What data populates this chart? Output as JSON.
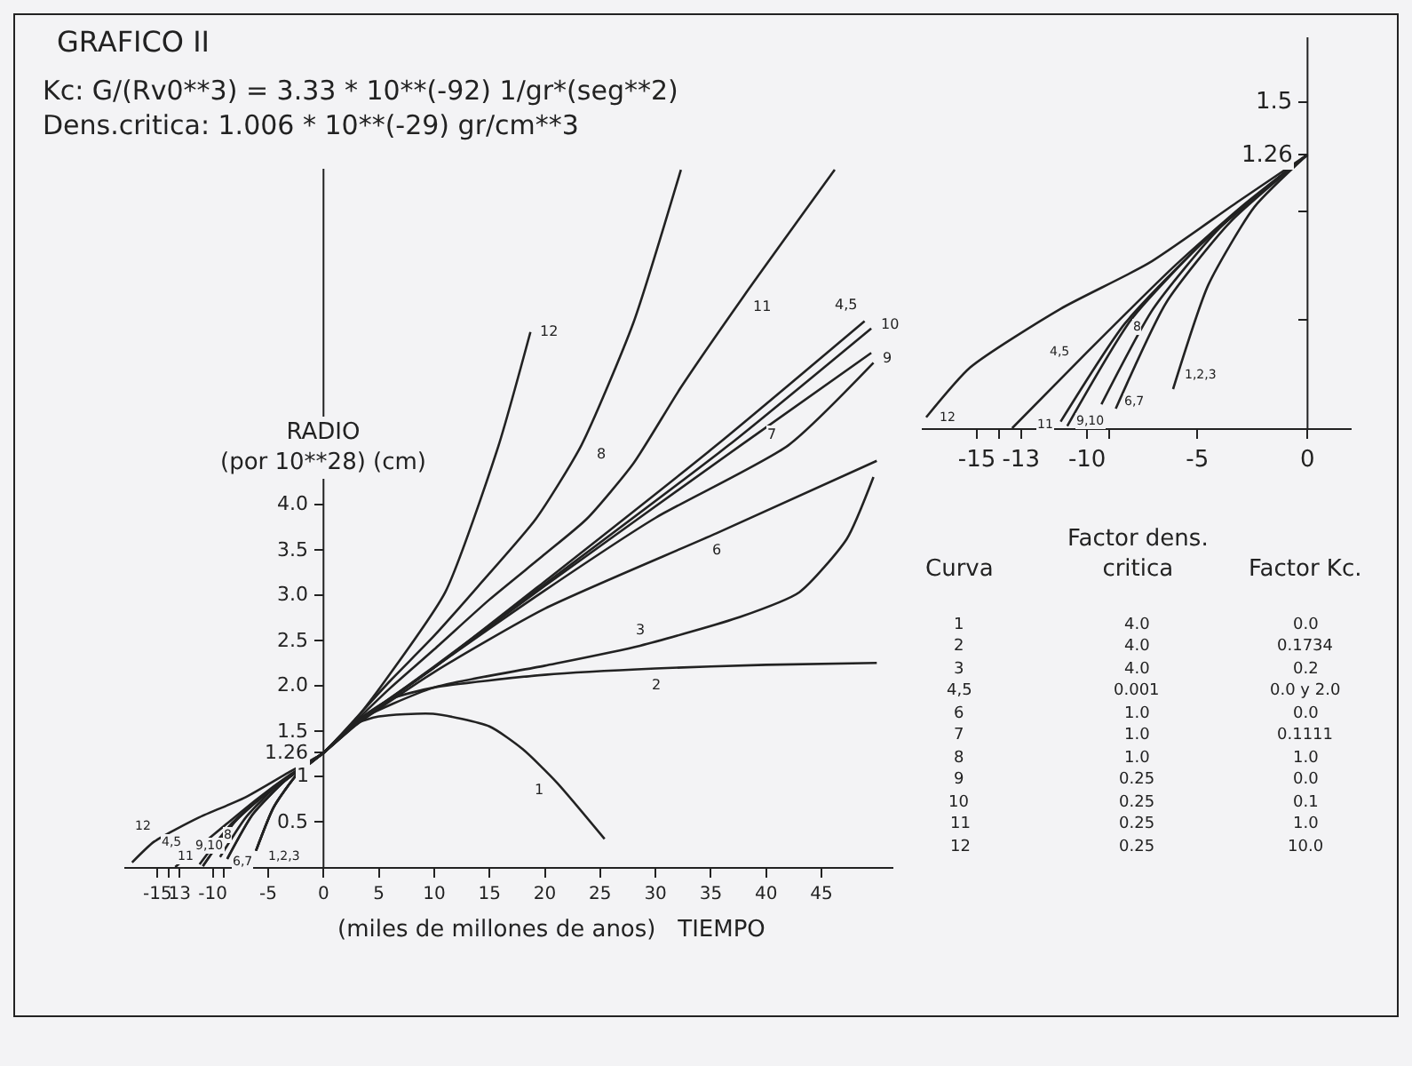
{
  "chart_data": [
    {
      "type": "line",
      "title": "GRAFICO II",
      "subtitle": "Kc: G/(Rv0**3) = 3.33 * 10**(-92) 1/gr*(seg**2)\nDens.critica: 1.006 * 10**(-29) gr/cm**3",
      "xlabel": "(miles de millones de anos)   TIEMPO",
      "ylabel": "RADIO\n(por 10**28) (cm)",
      "xlim": [
        -18,
        51.5
      ],
      "ylim": [
        0,
        7.7
      ],
      "xticks": [
        -15,
        {
          "value": -14,
          "label": null
        },
        {
          "value": -13,
          "label": "13"
        },
        -10,
        {
          "value": -9,
          "label": null
        },
        -5,
        0,
        5,
        10,
        15,
        20,
        25,
        30,
        35,
        40,
        45
      ],
      "yticks": [
        0.5,
        {
          "value": 1,
          "label": "1"
        },
        1.26,
        1.5,
        {
          "value": 2,
          "label": "2.0"
        },
        2.5,
        {
          "value": 3,
          "label": "3.0"
        },
        3.5,
        {
          "value": 4,
          "label": "4.0"
        }
      ],
      "grid": false,
      "line_style": "solid",
      "series": [
        {
          "color": "#222222",
          "x": [
            -6.1,
            -4.5,
            -2.4,
            0,
            2.9,
            5,
            9.9,
            15,
            18,
            21.1,
            25.4
          ],
          "values": [
            0.18,
            0.66,
            1.02,
            1.26,
            1.58,
            1.66,
            1.69,
            1.55,
            1.3,
            0.93,
            0.31
          ]
        },
        {
          "color": "#222222",
          "x": [
            -6.1,
            -4.5,
            -2.4,
            0,
            2.9,
            6,
            10,
            20,
            30,
            40,
            50
          ],
          "values": [
            0.18,
            0.66,
            1.02,
            1.26,
            1.6,
            1.85,
            1.98,
            2.12,
            2.19,
            2.23,
            2.25
          ]
        },
        {
          "color": "#222222",
          "x": [
            -6.1,
            -4.5,
            -2.4,
            0,
            2.9,
            10,
            20,
            28.6,
            37.7,
            43,
            47.3,
            49.7
          ],
          "values": [
            0.18,
            0.66,
            1.02,
            1.26,
            1.6,
            1.98,
            2.22,
            2.44,
            2.76,
            3.03,
            3.62,
            4.3
          ]
        },
        {
          "color": "#222222",
          "x": [
            -13.4,
            -10,
            -6,
            -3,
            0,
            3,
            10,
            20,
            35.5,
            48.9
          ],
          "values": [
            0,
            0.35,
            0.75,
            1.02,
            1.26,
            1.6,
            2.2,
            3.15,
            4.65,
            6.02
          ]
        },
        {
          "color": "#222222",
          "x": [
            -8.7,
            -6.4,
            -3.5,
            0,
            3,
            10,
            20,
            35.5,
            50
          ],
          "values": [
            0.09,
            0.58,
            0.95,
            1.26,
            1.57,
            2.15,
            2.85,
            3.68,
            4.48
          ]
        },
        {
          "color": "#222222",
          "x": [
            -8.7,
            -6.4,
            -3.5,
            0,
            3,
            10,
            20,
            30,
            42,
            49.7
          ],
          "values": [
            0.09,
            0.58,
            0.95,
            1.26,
            1.58,
            2.2,
            3.05,
            3.85,
            4.65,
            5.56
          ]
        },
        {
          "color": "#222222",
          "x": [
            -9.35,
            -7,
            -4,
            0,
            3,
            6,
            10,
            14,
            19.2,
            23.3,
            28,
            32.3
          ],
          "values": [
            0.11,
            0.55,
            0.92,
            1.26,
            1.65,
            2.05,
            2.55,
            3.1,
            3.84,
            4.65,
            6.0,
            7.69
          ]
        },
        {
          "color": "#222222",
          "x": [
            -10.9,
            -8,
            -4.5,
            0,
            3,
            10,
            20,
            37.7,
            49.5
          ],
          "values": [
            0.01,
            0.5,
            0.88,
            1.26,
            1.58,
            2.2,
            3.1,
            4.65,
            5.67
          ]
        },
        {
          "color": "#222222",
          "x": [
            -10.9,
            -8,
            -4.5,
            0,
            3,
            10,
            20,
            36.6,
            49.5
          ],
          "values": [
            0.01,
            0.5,
            0.88,
            1.26,
            1.59,
            2.21,
            3.12,
            4.65,
            5.94
          ]
        },
        {
          "color": "#222222",
          "x": [
            -11.2,
            -8.3,
            -4.6,
            0,
            3,
            6,
            10,
            15,
            20,
            23.8,
            28,
            32.3,
            38,
            46.2
          ],
          "values": [
            0.03,
            0.48,
            0.87,
            1.26,
            1.62,
            1.97,
            2.4,
            2.95,
            3.45,
            3.84,
            4.45,
            5.29,
            6.3,
            7.69
          ]
        },
        {
          "color": "#222222",
          "x": [
            -17.3,
            -15.3,
            -11.2,
            -7.2,
            -3.2,
            0,
            2.9,
            5.6,
            11,
            15.8,
            18.7
          ],
          "values": [
            0.05,
            0.28,
            0.55,
            0.76,
            1.04,
            1.26,
            1.63,
            2.06,
            3.03,
            4.64,
            5.9
          ]
        }
      ],
      "annotations": [
        {
          "text": "12",
          "x": 18.7,
          "y": 5.9
        },
        {
          "text": "8",
          "x": 23.3,
          "y": 4.65
        },
        {
          "text": "11",
          "x": 38,
          "y": 6.3
        },
        {
          "text": "4,5",
          "x": 48.9,
          "y": 6.02
        },
        {
          "text": "10",
          "x": 49.5,
          "y": 5.94
        },
        {
          "text": "9",
          "x": 49.5,
          "y": 5.67
        },
        {
          "text": "7",
          "x": 42,
          "y": 4.65
        },
        {
          "text": "6",
          "x": 35.5,
          "y": 3.68
        },
        {
          "text": "3",
          "x": 28.6,
          "y": 2.44
        },
        {
          "text": "2",
          "x": 30,
          "y": 2.19
        },
        {
          "text": "1",
          "x": 21.1,
          "y": 0.93
        },
        {
          "text": "12",
          "x": -15.3,
          "y": 0.28
        },
        {
          "text": "4,5",
          "x": -10,
          "y": 0.35
        },
        {
          "text": "8",
          "x": -9.35,
          "y": 0.11
        },
        {
          "text": "11",
          "x": -11.2,
          "y": 0.03
        },
        {
          "text": "9,10",
          "x": -10.9,
          "y": 0.01
        },
        {
          "text": "6,7",
          "x": -8.7,
          "y": 0.09
        },
        {
          "text": "1,2,3",
          "x": -6.1,
          "y": 0.18
        }
      ]
    },
    {
      "type": "line",
      "xlim": [
        -17.5,
        2
      ],
      "ylim": [
        0,
        1.8
      ],
      "xticks": [
        -15,
        {
          "value": -14,
          "label": null
        },
        -13,
        -10,
        {
          "value": -9,
          "label": null
        },
        -5,
        0
      ],
      "yticks": [
        {
          "value": 0.5,
          "label": null
        },
        {
          "value": 1,
          "label": null
        },
        1.26,
        1.5
      ],
      "grid": false,
      "line_style": "solid",
      "series": [
        {
          "color": "#222222",
          "x": [
            -17.3,
            -15.3,
            -11.2,
            -7.2,
            -3.2,
            0
          ],
          "values": [
            0.05,
            0.28,
            0.55,
            0.76,
            1.04,
            1.26
          ]
        },
        {
          "color": "#222222",
          "x": [
            -13.4,
            -10,
            -6,
            -3,
            0
          ],
          "values": [
            0,
            0.35,
            0.75,
            1.02,
            1.26
          ]
        },
        {
          "color": "#222222",
          "x": [
            -11.2,
            -8.3,
            -4.6,
            0
          ],
          "values": [
            0.03,
            0.48,
            0.87,
            1.26
          ]
        },
        {
          "color": "#222222",
          "x": [
            -10.9,
            -8,
            -4.5,
            0
          ],
          "values": [
            0.01,
            0.5,
            0.88,
            1.26
          ]
        },
        {
          "color": "#222222",
          "x": [
            -9.35,
            -7,
            -4,
            0
          ],
          "values": [
            0.11,
            0.55,
            0.92,
            1.26
          ]
        },
        {
          "color": "#222222",
          "x": [
            -8.7,
            -6.4,
            -3.5,
            0
          ],
          "values": [
            0.09,
            0.58,
            0.95,
            1.26
          ]
        },
        {
          "color": "#222222",
          "x": [
            -6.1,
            -4.5,
            -2.4,
            0
          ],
          "values": [
            0.18,
            0.66,
            1.02,
            1.26
          ]
        }
      ],
      "annotations": [
        {
          "text": "12",
          "x": -17.3,
          "y": 0.05
        },
        {
          "text": "4,5",
          "x": -10,
          "y": 0.35
        },
        {
          "text": "11",
          "x": -11.2,
          "y": 0.03
        },
        {
          "text": "9,10",
          "x": -10.9,
          "y": 0.01
        },
        {
          "text": "8",
          "x": -7,
          "y": 0.55
        },
        {
          "text": "6,7",
          "x": -8.7,
          "y": 0.09
        },
        {
          "text": "1,2,3",
          "x": -6.1,
          "y": 0.18
        }
      ]
    },
    {
      "type": "other",
      "annotations": [
        "Curva",
        "Factor dens.\ncritica",
        "Factor Kc.",
        "1",
        "4.0",
        "0.0",
        "2",
        "4.0",
        "0.1734",
        "3",
        "4.0",
        "0.2",
        "4,5",
        "0.001",
        "0.0 y 2.0",
        "6",
        "1.0",
        "0.0",
        "7",
        "1.0",
        "0.1111",
        "8",
        "1.0",
        "1.0",
        "9",
        "0.25",
        "0.0",
        "10",
        "0.25",
        "0.1",
        "11",
        "0.25",
        "1.0",
        "12",
        "0.25",
        "10.0"
      ]
    }
  ]
}
